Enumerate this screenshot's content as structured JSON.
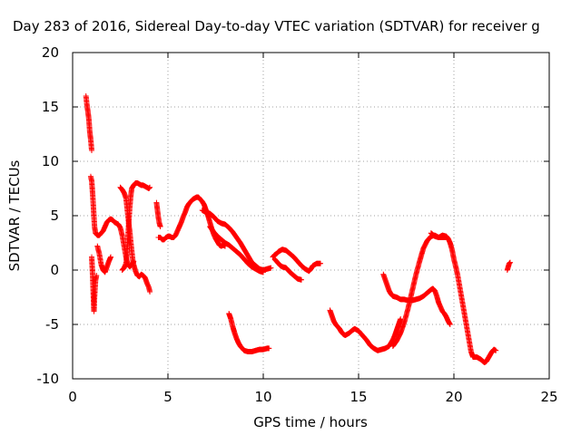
{
  "chart_data": {
    "type": "scatter",
    "title": "Day 283 of 2016, Sidereal Day-to-day VTEC variation (SDTVAR) for receiver g",
    "xlabel": "GPS time / hours",
    "ylabel": "SDTVAR / TECUs",
    "xlim": [
      0,
      25
    ],
    "ylim": [
      -10,
      20
    ],
    "xticks": [
      "0",
      "5",
      "10",
      "15",
      "20",
      "25"
    ],
    "yticks": [
      "-10",
      "-5",
      "0",
      "5",
      "10",
      "15",
      "20"
    ],
    "grid": true,
    "marker": "plus",
    "color": "#ff0000",
    "segments": [
      [
        [
          0.7,
          16.0
        ],
        [
          0.75,
          15.2
        ],
        [
          0.8,
          14.6
        ],
        [
          0.85,
          13.9
        ],
        [
          0.9,
          12.7
        ],
        [
          0.95,
          12.0
        ],
        [
          1.0,
          11.0
        ]
      ],
      [
        [
          0.95,
          8.6
        ],
        [
          1.0,
          8.2
        ],
        [
          1.05,
          7.0
        ],
        [
          1.1,
          5.5
        ],
        [
          1.15,
          4.0
        ],
        [
          1.2,
          3.4
        ],
        [
          1.3,
          3.2
        ],
        [
          1.4,
          3.2
        ],
        [
          1.5,
          3.4
        ],
        [
          1.6,
          3.6
        ],
        [
          1.7,
          4.0
        ],
        [
          1.8,
          4.4
        ],
        [
          1.9,
          4.6
        ],
        [
          2.0,
          4.7
        ],
        [
          2.1,
          4.6
        ],
        [
          2.2,
          4.4
        ],
        [
          2.3,
          4.3
        ],
        [
          2.4,
          4.2
        ],
        [
          2.5,
          3.9
        ],
        [
          2.6,
          3.2
        ],
        [
          2.7,
          2.2
        ],
        [
          2.8,
          1.2
        ],
        [
          2.9,
          0.5
        ],
        [
          3.0,
          0.3
        ],
        [
          3.1,
          0.5
        ],
        [
          3.2,
          0.8
        ]
      ],
      [
        [
          1.0,
          1.2
        ],
        [
          1.05,
          -0.5
        ],
        [
          1.08,
          -2.0
        ],
        [
          1.1,
          -3.0
        ],
        [
          1.12,
          -3.8
        ],
        [
          1.15,
          -2.5
        ],
        [
          1.2,
          -1.0
        ],
        [
          1.25,
          -0.5
        ]
      ],
      [
        [
          1.3,
          2.2
        ],
        [
          1.4,
          1.5
        ],
        [
          1.5,
          0.5
        ],
        [
          1.6,
          0.0
        ],
        [
          1.7,
          -0.2
        ],
        [
          1.8,
          0.3
        ],
        [
          1.9,
          0.8
        ],
        [
          2.0,
          1.2
        ]
      ],
      [
        [
          2.5,
          7.6
        ],
        [
          2.6,
          7.4
        ],
        [
          2.7,
          7.1
        ],
        [
          2.8,
          6.6
        ],
        [
          2.85,
          5.8
        ],
        [
          2.9,
          5.0
        ],
        [
          2.95,
          4.2
        ],
        [
          3.0,
          3.5
        ],
        [
          3.05,
          2.6
        ],
        [
          3.1,
          1.8
        ],
        [
          3.15,
          1.0
        ],
        [
          3.2,
          0.5
        ],
        [
          3.3,
          -0.1
        ],
        [
          3.4,
          -0.5
        ],
        [
          3.5,
          -0.6
        ],
        [
          3.6,
          -0.4
        ],
        [
          3.7,
          -0.5
        ],
        [
          3.8,
          -0.7
        ],
        [
          3.9,
          -1.2
        ],
        [
          4.0,
          -1.6
        ],
        [
          4.05,
          -2.0
        ]
      ],
      [
        [
          2.6,
          0.0
        ],
        [
          2.7,
          0.2
        ],
        [
          2.8,
          0.6
        ],
        [
          2.85,
          1.5
        ],
        [
          2.9,
          3.0
        ],
        [
          2.95,
          4.5
        ],
        [
          3.0,
          5.8
        ],
        [
          3.05,
          6.8
        ],
        [
          3.1,
          7.5
        ],
        [
          3.2,
          7.8
        ],
        [
          3.3,
          8.0
        ],
        [
          3.4,
          8.0
        ],
        [
          3.5,
          7.9
        ],
        [
          3.6,
          7.8
        ],
        [
          3.7,
          7.8
        ],
        [
          3.8,
          7.7
        ],
        [
          3.9,
          7.6
        ],
        [
          4.0,
          7.5
        ],
        [
          4.05,
          7.6
        ]
      ],
      [
        [
          4.4,
          6.2
        ],
        [
          4.45,
          5.5
        ],
        [
          4.5,
          4.8
        ],
        [
          4.55,
          4.3
        ],
        [
          4.6,
          4.0
        ]
      ],
      [
        [
          4.5,
          3.0
        ],
        [
          4.6,
          3.0
        ],
        [
          4.7,
          2.8
        ],
        [
          4.8,
          2.8
        ],
        [
          4.9,
          3.0
        ],
        [
          5.0,
          3.1
        ],
        [
          5.1,
          3.1
        ],
        [
          5.2,
          3.0
        ],
        [
          5.3,
          3.0
        ],
        [
          5.4,
          3.2
        ],
        [
          5.5,
          3.6
        ],
        [
          5.6,
          4.0
        ],
        [
          5.7,
          4.4
        ],
        [
          5.8,
          4.9
        ],
        [
          5.9,
          5.3
        ],
        [
          6.0,
          5.8
        ],
        [
          6.1,
          6.1
        ],
        [
          6.2,
          6.3
        ],
        [
          6.3,
          6.5
        ],
        [
          6.4,
          6.6
        ],
        [
          6.5,
          6.7
        ],
        [
          6.6,
          6.7
        ],
        [
          6.7,
          6.5
        ],
        [
          6.8,
          6.3
        ],
        [
          6.9,
          6.0
        ],
        [
          7.0,
          5.5
        ],
        [
          7.1,
          5.0
        ],
        [
          7.2,
          4.4
        ],
        [
          7.3,
          3.8
        ],
        [
          7.4,
          3.3
        ],
        [
          7.5,
          2.9
        ],
        [
          7.6,
          2.6
        ],
        [
          7.7,
          2.3
        ],
        [
          7.8,
          2.2
        ],
        [
          7.9,
          2.3
        ],
        [
          8.0,
          2.2
        ]
      ],
      [
        [
          6.8,
          5.5
        ],
        [
          7.0,
          5.3
        ],
        [
          7.2,
          5.2
        ],
        [
          7.4,
          4.9
        ],
        [
          7.6,
          4.5
        ],
        [
          7.8,
          4.3
        ],
        [
          8.0,
          4.2
        ],
        [
          8.2,
          3.9
        ],
        [
          8.4,
          3.5
        ],
        [
          8.6,
          3.0
        ],
        [
          8.8,
          2.5
        ],
        [
          9.0,
          1.9
        ],
        [
          9.2,
          1.3
        ],
        [
          9.4,
          0.7
        ],
        [
          9.6,
          0.4
        ],
        [
          9.8,
          0.1
        ],
        [
          10.0,
          0.0
        ],
        [
          10.2,
          0.1
        ],
        [
          10.4,
          0.2
        ]
      ],
      [
        [
          7.2,
          4.0
        ],
        [
          7.4,
          3.5
        ],
        [
          7.6,
          3.1
        ],
        [
          7.8,
          2.8
        ],
        [
          8.0,
          2.5
        ],
        [
          8.2,
          2.3
        ],
        [
          8.4,
          2.0
        ],
        [
          8.6,
          1.7
        ],
        [
          8.8,
          1.4
        ],
        [
          9.0,
          1.0
        ],
        [
          9.2,
          0.6
        ],
        [
          9.4,
          0.3
        ],
        [
          9.6,
          0.1
        ],
        [
          9.8,
          -0.1
        ],
        [
          10.0,
          -0.2
        ]
      ],
      [
        [
          8.2,
          -4.0
        ],
        [
          8.3,
          -4.5
        ],
        [
          8.4,
          -5.2
        ],
        [
          8.5,
          -5.8
        ],
        [
          8.6,
          -6.3
        ],
        [
          8.7,
          -6.7
        ],
        [
          8.8,
          -7.0
        ],
        [
          8.9,
          -7.2
        ],
        [
          9.0,
          -7.4
        ],
        [
          9.2,
          -7.5
        ],
        [
          9.4,
          -7.5
        ],
        [
          9.6,
          -7.4
        ],
        [
          9.8,
          -7.3
        ],
        [
          10.0,
          -7.3
        ],
        [
          10.2,
          -7.2
        ],
        [
          10.3,
          -7.2
        ]
      ],
      [
        [
          10.5,
          1.2
        ],
        [
          10.6,
          1.4
        ],
        [
          10.7,
          1.5
        ],
        [
          10.8,
          1.7
        ],
        [
          10.9,
          1.8
        ],
        [
          11.0,
          1.9
        ],
        [
          11.2,
          1.8
        ],
        [
          11.4,
          1.5
        ],
        [
          11.6,
          1.2
        ],
        [
          11.8,
          0.8
        ],
        [
          12.0,
          0.4
        ],
        [
          12.2,
          0.1
        ],
        [
          12.4,
          -0.1
        ],
        [
          12.5,
          0.1
        ],
        [
          12.6,
          0.4
        ],
        [
          12.8,
          0.6
        ],
        [
          13.0,
          0.6
        ]
      ],
      [
        [
          10.6,
          1.0
        ],
        [
          10.7,
          0.8
        ],
        [
          10.8,
          0.6
        ],
        [
          10.9,
          0.4
        ],
        [
          11.0,
          0.3
        ],
        [
          11.2,
          0.2
        ],
        [
          11.4,
          -0.2
        ],
        [
          11.6,
          -0.5
        ],
        [
          11.8,
          -0.8
        ],
        [
          12.0,
          -0.9
        ]
      ],
      [
        [
          13.5,
          -3.7
        ],
        [
          13.6,
          -4.2
        ],
        [
          13.7,
          -4.7
        ],
        [
          13.8,
          -5.0
        ],
        [
          13.9,
          -5.2
        ],
        [
          14.0,
          -5.4
        ],
        [
          14.1,
          -5.7
        ],
        [
          14.2,
          -5.9
        ],
        [
          14.3,
          -6.0
        ],
        [
          14.5,
          -5.8
        ],
        [
          14.7,
          -5.5
        ],
        [
          14.8,
          -5.4
        ],
        [
          15.0,
          -5.6
        ],
        [
          15.2,
          -6.0
        ],
        [
          15.4,
          -6.4
        ],
        [
          15.6,
          -6.9
        ],
        [
          15.8,
          -7.2
        ],
        [
          16.0,
          -7.4
        ],
        [
          16.2,
          -7.3
        ],
        [
          16.4,
          -7.2
        ],
        [
          16.6,
          -7.0
        ],
        [
          16.8,
          -6.4
        ],
        [
          16.9,
          -6.0
        ],
        [
          17.0,
          -5.5
        ],
        [
          17.1,
          -5.0
        ],
        [
          17.2,
          -4.5
        ]
      ],
      [
        [
          16.3,
          -0.4
        ],
        [
          16.4,
          -0.9
        ],
        [
          16.5,
          -1.4
        ],
        [
          16.6,
          -1.9
        ],
        [
          16.7,
          -2.2
        ],
        [
          16.8,
          -2.4
        ],
        [
          17.0,
          -2.5
        ],
        [
          17.2,
          -2.7
        ],
        [
          17.4,
          -2.7
        ],
        [
          17.6,
          -2.8
        ],
        [
          17.8,
          -2.8
        ],
        [
          18.0,
          -2.7
        ],
        [
          18.2,
          -2.6
        ],
        [
          18.4,
          -2.4
        ],
        [
          18.6,
          -2.1
        ],
        [
          18.8,
          -1.8
        ],
        [
          18.9,
          -1.7
        ],
        [
          19.0,
          -1.9
        ],
        [
          19.1,
          -2.4
        ],
        [
          19.2,
          -3.0
        ],
        [
          19.3,
          -3.4
        ],
        [
          19.4,
          -3.8
        ],
        [
          19.5,
          -4.0
        ],
        [
          19.6,
          -4.3
        ],
        [
          19.7,
          -4.7
        ],
        [
          19.8,
          -5.0
        ]
      ],
      [
        [
          16.8,
          -7.0
        ],
        [
          17.0,
          -6.5
        ],
        [
          17.2,
          -5.8
        ],
        [
          17.4,
          -4.8
        ],
        [
          17.6,
          -3.5
        ],
        [
          17.8,
          -2.0
        ],
        [
          18.0,
          -0.5
        ],
        [
          18.2,
          0.8
        ],
        [
          18.4,
          2.0
        ],
        [
          18.6,
          2.7
        ],
        [
          18.8,
          3.1
        ],
        [
          19.0,
          3.2
        ],
        [
          19.2,
          3.0
        ],
        [
          19.4,
          3.2
        ],
        [
          19.6,
          3.1
        ],
        [
          19.7,
          2.9
        ],
        [
          19.8,
          2.5
        ],
        [
          19.9,
          1.9
        ],
        [
          20.0,
          1.0
        ],
        [
          20.1,
          0.3
        ],
        [
          20.2,
          -0.5
        ],
        [
          20.3,
          -1.5
        ],
        [
          20.4,
          -2.5
        ],
        [
          20.5,
          -3.5
        ],
        [
          20.6,
          -4.5
        ],
        [
          20.7,
          -5.5
        ],
        [
          20.8,
          -6.5
        ],
        [
          20.9,
          -7.5
        ],
        [
          21.0,
          -8.0
        ],
        [
          21.2,
          -8.0
        ],
        [
          21.4,
          -8.2
        ],
        [
          21.6,
          -8.5
        ],
        [
          21.7,
          -8.4
        ],
        [
          21.8,
          -8.1
        ],
        [
          21.9,
          -7.8
        ],
        [
          22.0,
          -7.5
        ],
        [
          22.1,
          -7.3
        ],
        [
          22.2,
          -7.4
        ]
      ],
      [
        [
          18.8,
          3.4
        ],
        [
          19.0,
          3.1
        ],
        [
          19.2,
          3.0
        ],
        [
          19.4,
          3.0
        ],
        [
          19.6,
          3.0
        ]
      ],
      [
        [
          22.8,
          0.0
        ],
        [
          22.85,
          0.3
        ],
        [
          22.9,
          0.6
        ],
        [
          22.95,
          0.7
        ]
      ]
    ]
  }
}
